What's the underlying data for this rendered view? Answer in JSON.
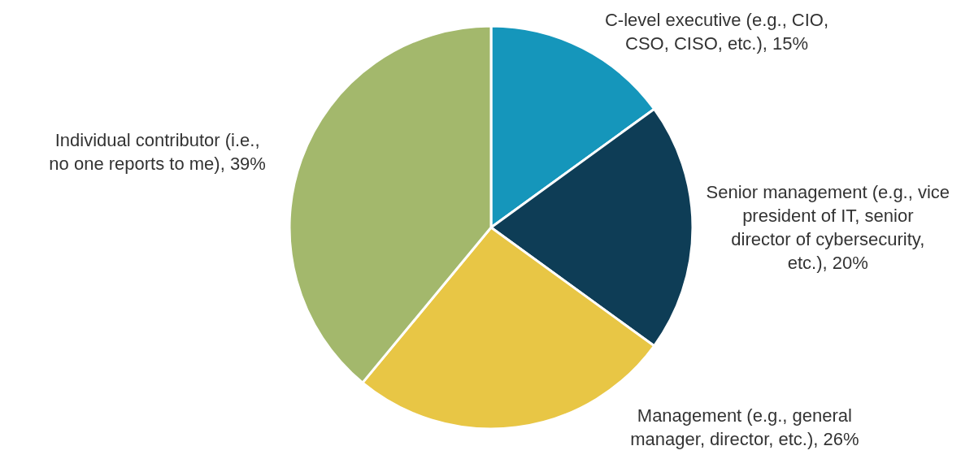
{
  "chart_data": {
    "type": "pie",
    "categories": [
      "C-level executive (e.g., CIO, CSO, CISO, etc.)",
      "Senior management (e.g., vice president of IT, senior director of cybersecurity, etc.)",
      "Management (e.g., general manager, director, etc.)",
      "Individual contributor (i.e., no one reports to me)"
    ],
    "values": [
      15,
      20,
      26,
      39
    ],
    "value_labels": [
      "15%",
      "20%",
      "26%",
      "39%"
    ],
    "colors": [
      "#1596bb",
      "#0e3d56",
      "#e8c645",
      "#a3b86c"
    ],
    "legend": false
  }
}
